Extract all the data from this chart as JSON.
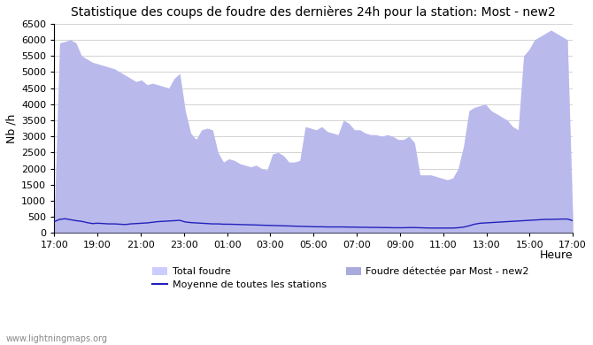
{
  "title": "Statistique des coups de foudre des dernières 24h pour la station: Most - new2",
  "xlabel": "Heure",
  "ylabel": "Nb /h",
  "watermark": "www.lightningmaps.org",
  "ylim": [
    0,
    6500
  ],
  "yticks": [
    0,
    500,
    1000,
    1500,
    2000,
    2500,
    3000,
    3500,
    4000,
    4500,
    5000,
    5500,
    6000,
    6500
  ],
  "xtick_labels": [
    "17:00",
    "19:00",
    "21:00",
    "23:00",
    "01:00",
    "03:00",
    "05:00",
    "07:00",
    "09:00",
    "11:00",
    "13:00",
    "15:00",
    "17:00"
  ],
  "legend": {
    "total_foudre_label": "Total foudre",
    "total_foudre_color": "#ccccff",
    "moyenne_label": "Moyenne de toutes les stations",
    "moyenne_color": "#2222bb",
    "foudre_detectee_label": "Foudre détectée par Most - new2",
    "foudre_detectee_color": "#aaaadd"
  },
  "background_color": "#ffffff",
  "plot_bg_color": "#ffffff",
  "grid_color": "#cccccc",
  "title_fontsize": 10,
  "total_foudre_y": [
    390,
    5900,
    5950,
    6000,
    5900,
    5500,
    5400,
    5300,
    5250,
    5200,
    5150,
    5100,
    5000,
    4900,
    4800,
    4700,
    4750,
    4600,
    4650,
    4600,
    4550,
    4500,
    4800,
    4950,
    3800,
    3100,
    2900,
    3200,
    3250,
    3200,
    2500,
    2200,
    2300,
    2250,
    2150,
    2100,
    2050,
    2100,
    2000,
    1950,
    2450,
    2500,
    2400,
    2200,
    2200,
    2250,
    3300,
    3250,
    3200,
    3300,
    3150,
    3100,
    3050,
    3500,
    3400,
    3200,
    3200,
    3100,
    3050,
    3050,
    3000,
    3050,
    3000,
    2900,
    2900,
    3000,
    2800,
    1800,
    1800,
    1800,
    1750,
    1700,
    1650,
    1700,
    2000,
    2700,
    3800,
    3900,
    3950,
    4000,
    3800,
    3700,
    3600,
    3500,
    3300,
    3200,
    5500,
    5700,
    6000,
    6100,
    6200,
    6300,
    6200,
    6100,
    6000,
    390
  ],
  "moyenne_y": [
    350,
    420,
    440,
    410,
    380,
    360,
    320,
    290,
    300,
    290,
    280,
    280,
    270,
    260,
    280,
    290,
    300,
    310,
    330,
    350,
    360,
    370,
    380,
    390,
    340,
    320,
    310,
    300,
    290,
    280,
    280,
    270,
    270,
    265,
    260,
    255,
    250,
    245,
    240,
    235,
    230,
    225,
    220,
    215,
    210,
    205,
    200,
    195,
    190,
    190,
    185,
    185,
    185,
    185,
    180,
    180,
    175,
    175,
    170,
    170,
    165,
    165,
    160,
    160,
    160,
    165,
    165,
    160,
    155,
    150,
    150,
    150,
    150,
    150,
    160,
    180,
    220,
    270,
    300,
    310,
    320,
    330,
    340,
    350,
    360,
    370,
    380,
    390,
    400,
    410,
    420,
    420,
    425,
    430,
    430,
    380
  ],
  "n_points": 96
}
